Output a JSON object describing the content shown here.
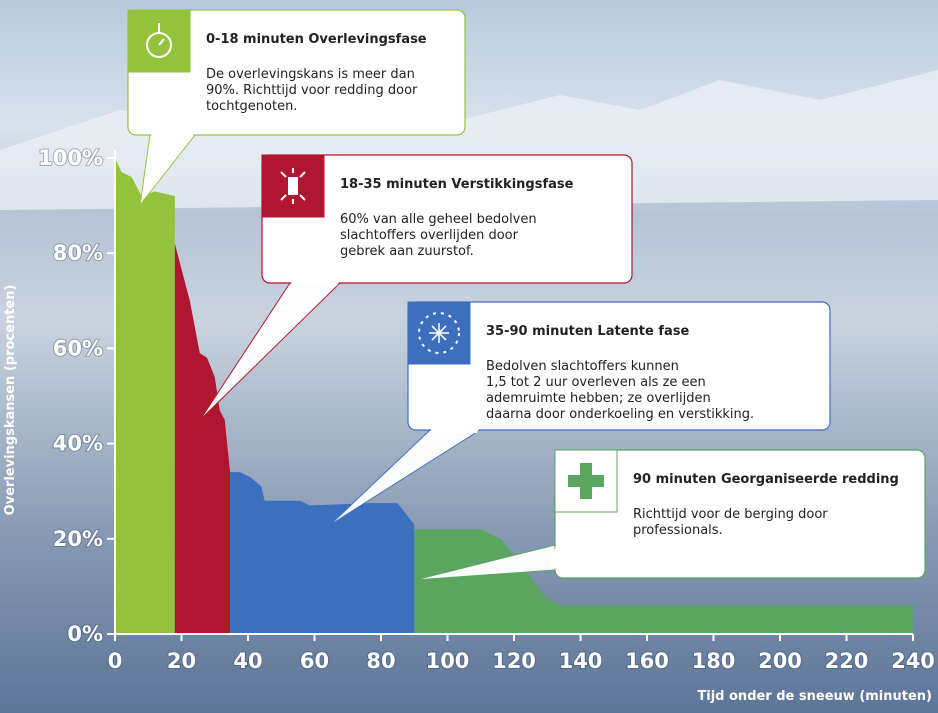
{
  "chart_data": {
    "type": "area",
    "ylabel": "Overlevingskansen (procenten)",
    "xlabel": "Tijd onder de sneeuw (minuten)",
    "xlim": [
      0,
      240
    ],
    "ylim": [
      0,
      100
    ],
    "xticks": [
      0,
      20,
      40,
      60,
      80,
      100,
      120,
      140,
      160,
      180,
      200,
      220,
      240
    ],
    "yticks": [
      {
        "value": 0,
        "label": "0%"
      },
      {
        "value": 20,
        "label": "20%"
      },
      {
        "value": 40,
        "label": "40%"
      },
      {
        "value": 60,
        "label": "60%"
      },
      {
        "value": 80,
        "label": "80%"
      },
      {
        "value": 100,
        "label": "100%"
      }
    ],
    "series": [
      {
        "color": "#95c23d",
        "x": [
          0,
          2,
          5,
          8,
          12,
          18
        ],
        "values": [
          100,
          97,
          96,
          92,
          93,
          92
        ]
      },
      {
        "color": "#b0162f",
        "x": [
          18,
          22.5,
          25.5,
          27.7,
          30,
          31.5,
          33,
          34.6
        ],
        "values": [
          82,
          70,
          59,
          58,
          54,
          47,
          45,
          34
        ]
      },
      {
        "color": "#3d6fbf",
        "x": [
          34.6,
          37.6,
          40.6,
          44,
          45,
          55.6,
          58.6,
          76.7,
          85,
          90
        ],
        "values": [
          34,
          34,
          33,
          31,
          28,
          28,
          27,
          27.5,
          27.5,
          23
        ]
      },
      {
        "color": "#5aa55f",
        "x": [
          90,
          110,
          116,
          123,
          129,
          134,
          240
        ],
        "values": [
          22,
          22,
          20,
          14,
          8,
          6,
          6
        ]
      }
    ],
    "callouts": [
      {
        "title": "0-18 minuten Overlevingsfase",
        "color": "#95c23d",
        "lines": [
          "De overlevingskans is meer dan",
          "90%. Richttijd voor redding door",
          "tochtgenoten."
        ]
      },
      {
        "title": "18-35 minuten Verstikkingsfase",
        "color": "#b0162f",
        "lines": [
          "60% van alle geheel bedolven",
          "slachtoffers overlijden door",
          "gebrek aan zuurstof."
        ]
      },
      {
        "title": "35-90 minuten Latente fase",
        "color": "#3d6fbf",
        "lines": [
          "Bedolven slachtoffers kunnen",
          "1,5 tot 2 uur overleven als ze een",
          "ademruimte hebben; ze overlijden",
          "daarna door onderkoeling en verstikking."
        ]
      },
      {
        "title": "90 minuten Georganiseerde redding",
        "color": "#5aa55f",
        "lines": [
          "Richttijd voor de berging door",
          "professionals."
        ]
      }
    ]
  }
}
